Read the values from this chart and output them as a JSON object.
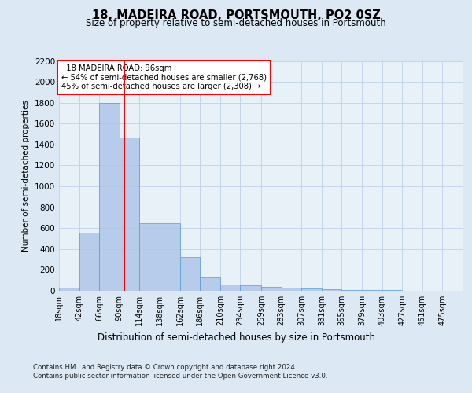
{
  "title": "18, MADEIRA ROAD, PORTSMOUTH, PO2 0SZ",
  "subtitle": "Size of property relative to semi-detached houses in Portsmouth",
  "xlabel": "Distribution of semi-detached houses by size in Portsmouth",
  "ylabel": "Number of semi-detached properties",
  "property_size": 96,
  "property_label": "18 MADEIRA ROAD: 96sqm",
  "pct_smaller": 54,
  "pct_larger": 45,
  "count_smaller": 2768,
  "count_larger": 2308,
  "bin_edges": [
    18,
    42,
    66,
    90,
    114,
    138,
    162,
    186,
    210,
    234,
    259,
    283,
    307,
    331,
    355,
    379,
    403,
    427,
    451,
    475,
    499
  ],
  "bar_values": [
    30,
    560,
    1800,
    1470,
    650,
    650,
    320,
    130,
    60,
    55,
    35,
    30,
    20,
    15,
    10,
    8,
    5,
    3,
    2,
    1
  ],
  "bar_color": "#aec6e8",
  "bar_edge_color": "#5b9bd5",
  "bar_alpha": 0.85,
  "vline_x": 96,
  "vline_color": "red",
  "ylim": [
    0,
    2200
  ],
  "yticks": [
    0,
    200,
    400,
    600,
    800,
    1000,
    1200,
    1400,
    1600,
    1800,
    2000,
    2200
  ],
  "grid_color": "#c0d0e8",
  "background_color": "#dce9f5",
  "plot_bg_color": "#e8f0f8",
  "footer_line1": "Contains HM Land Registry data © Crown copyright and database right 2024.",
  "footer_line2": "Contains public sector information licensed under the Open Government Licence v3.0."
}
